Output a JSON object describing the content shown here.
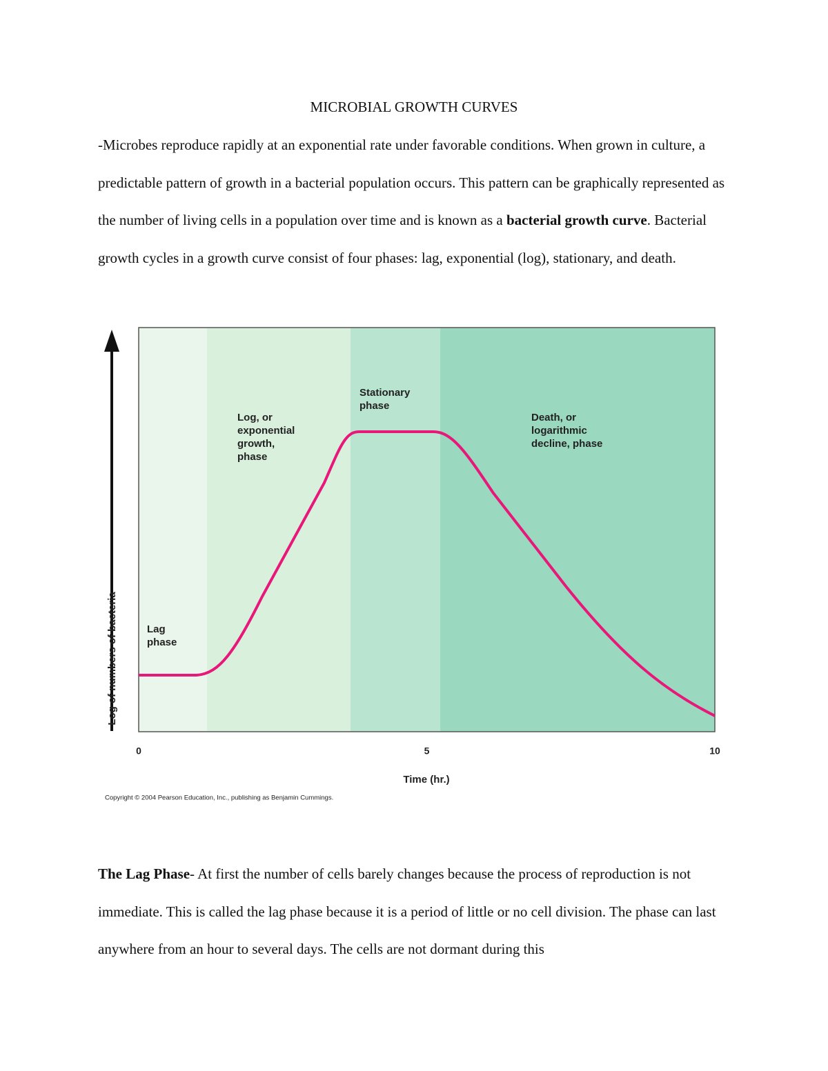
{
  "title": "MICROBIAL GROWTH CURVES",
  "intro": [
    "-Microbes reproduce rapidly at an exponential rate under favorable conditions. When grown in culture, a predictable pattern of growth in a bacterial population occurs. This pattern can be graphically represented as the number of living cells in a population over time and is known as a ",
    "bacterial growth curve",
    ". Bacterial growth cycles in a growth curve consist of four phases: lag, exponential (log), stationary, and death."
  ],
  "chart_data": {
    "type": "line",
    "xlabel": "Time (hr.)",
    "ylabel": "Log of numbers of bacteria",
    "xlim": [
      0,
      10
    ],
    "xticks": [
      0,
      5,
      10
    ],
    "annotations": [
      [
        "Lag",
        "phase"
      ],
      [
        "Log, or",
        "exponential",
        "growth,",
        "phase"
      ],
      [
        "Stationary",
        "phase"
      ],
      [
        "Death, or",
        "logarithmic",
        "decline, phase"
      ]
    ],
    "copyright": "Copyright © 2004 Pearson Education, Inc., publishing as Benjamin Cummings."
  },
  "lag_section": [
    "The Lag Phase",
    "- At first the number of cells barely changes because the process of reproduction is not immediate. This is called the lag phase because it is a period of little or no cell division. The phase can last anywhere from an hour to several days. The cells are not dormant during this"
  ]
}
